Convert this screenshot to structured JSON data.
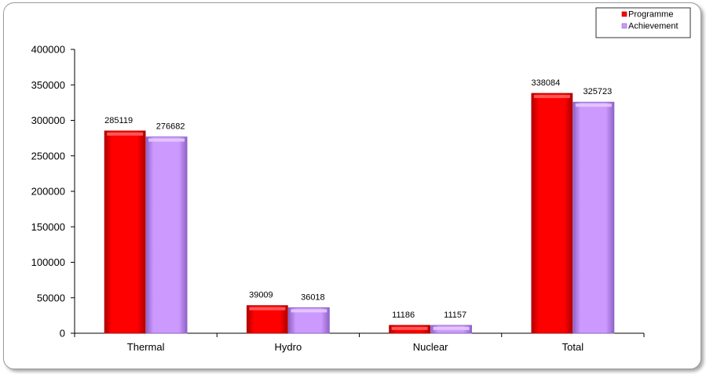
{
  "chart_data": {
    "type": "bar",
    "categories": [
      "Thermal",
      "Hydro",
      "Nuclear",
      "Total"
    ],
    "series": [
      {
        "name": "Programme",
        "values": [
          285119,
          39009,
          11186,
          338084
        ],
        "color": "#ff0000",
        "dark": "#b00000",
        "light": "#ff6666"
      },
      {
        "name": "Achievement",
        "values": [
          276682,
          36018,
          11157,
          325723
        ],
        "color": "#cc99ff",
        "dark": "#8f63c8",
        "light": "#e6ccff"
      }
    ],
    "ylim": [
      0,
      400000
    ],
    "yticks": [
      "0",
      "50000",
      "100000",
      "150000",
      "200000",
      "250000",
      "300000",
      "350000",
      "400000"
    ],
    "legend": "top-right",
    "grid": false
  }
}
